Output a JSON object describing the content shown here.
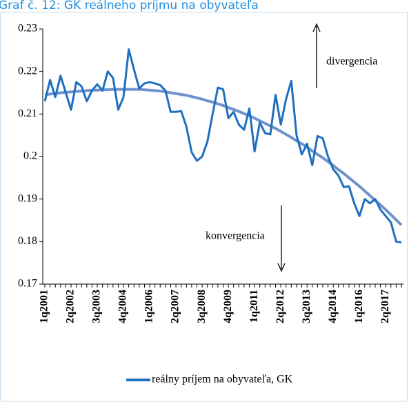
{
  "chart_data": {
    "type": "line",
    "title": "Graf č. 12: GK reálneho príjmu na obyvateľa",
    "categories": [
      "1q2001",
      null,
      null,
      null,
      null,
      "2q2002",
      null,
      null,
      null,
      null,
      "3q2003",
      null,
      null,
      null,
      null,
      "4q2004",
      null,
      null,
      null,
      null,
      "1q2006",
      null,
      null,
      null,
      null,
      "2q2007",
      null,
      null,
      null,
      null,
      "3q2008",
      null,
      null,
      null,
      null,
      "4q2009",
      null,
      null,
      null,
      null,
      "1q2011",
      null,
      null,
      null,
      null,
      "2q2012",
      null,
      null,
      null,
      null,
      "3q2013",
      null,
      null,
      null,
      null,
      "4q2014",
      null,
      null,
      null,
      null,
      "1q2016",
      null,
      null,
      null,
      null,
      "2q2017",
      null,
      null,
      null
    ],
    "series": [
      {
        "name": "reálny príjem na obyvateľa, GK",
        "color": "#1f6fc0",
        "values": [
          0.213,
          0.218,
          0.214,
          0.219,
          0.215,
          0.211,
          0.2175,
          0.2165,
          0.213,
          0.2155,
          0.217,
          0.2155,
          0.22,
          0.2185,
          0.211,
          0.214,
          0.2252,
          0.2205,
          0.216,
          0.2172,
          0.2175,
          0.2172,
          0.2168,
          0.2155,
          0.2105,
          0.2105,
          0.2107,
          0.207,
          0.201,
          0.199,
          0.2,
          0.2035,
          0.21,
          0.2162,
          0.2158,
          0.209,
          0.2105,
          0.2075,
          0.2063,
          0.2113,
          0.2012,
          0.208,
          0.2055,
          0.2052,
          0.2145,
          0.2075,
          0.2135,
          0.2178,
          0.205,
          0.2005,
          0.203,
          0.198,
          0.2048,
          0.2043,
          0.2,
          0.197,
          0.1955,
          0.1928,
          0.193,
          0.189,
          0.186,
          0.19,
          0.189,
          0.19,
          0.1875,
          0.186,
          0.1845,
          0.18,
          0.1798
        ]
      },
      {
        "color": "#6f92cc",
        "values": [
          0.2145,
          0.2147,
          0.2148,
          0.215,
          0.2151,
          0.2152,
          0.2153,
          0.2154,
          0.2155,
          0.2156,
          0.2156,
          0.2157,
          0.2157,
          0.2158,
          0.2158,
          0.2158,
          0.2158,
          0.2158,
          0.2158,
          0.2157,
          0.2156,
          0.2155,
          0.2154,
          0.2152,
          0.215,
          0.2148,
          0.2146,
          0.2144,
          0.2141,
          0.2138,
          0.2135,
          0.2131,
          0.2128,
          0.2124,
          0.212,
          0.2115,
          0.2111,
          0.2106,
          0.2101,
          0.2096,
          0.209,
          0.2084,
          0.2078,
          0.2072,
          0.2066,
          0.2059,
          0.2052,
          0.2045,
          0.2037,
          0.203,
          0.2022,
          0.2013,
          0.2005,
          0.1997,
          0.1988,
          0.1979,
          0.1969,
          0.196,
          0.195,
          0.194,
          0.193,
          0.1919,
          0.1908,
          0.1897,
          0.1886,
          0.1875,
          0.1863,
          0.1851,
          0.1839
        ]
      }
    ],
    "ylim": [
      0.17,
      0.23
    ],
    "yticks": [
      0.17,
      0.18,
      0.19,
      0.2,
      0.21,
      0.22,
      0.23
    ],
    "annotations": [
      "divergencia",
      "konvergencia"
    ]
  }
}
